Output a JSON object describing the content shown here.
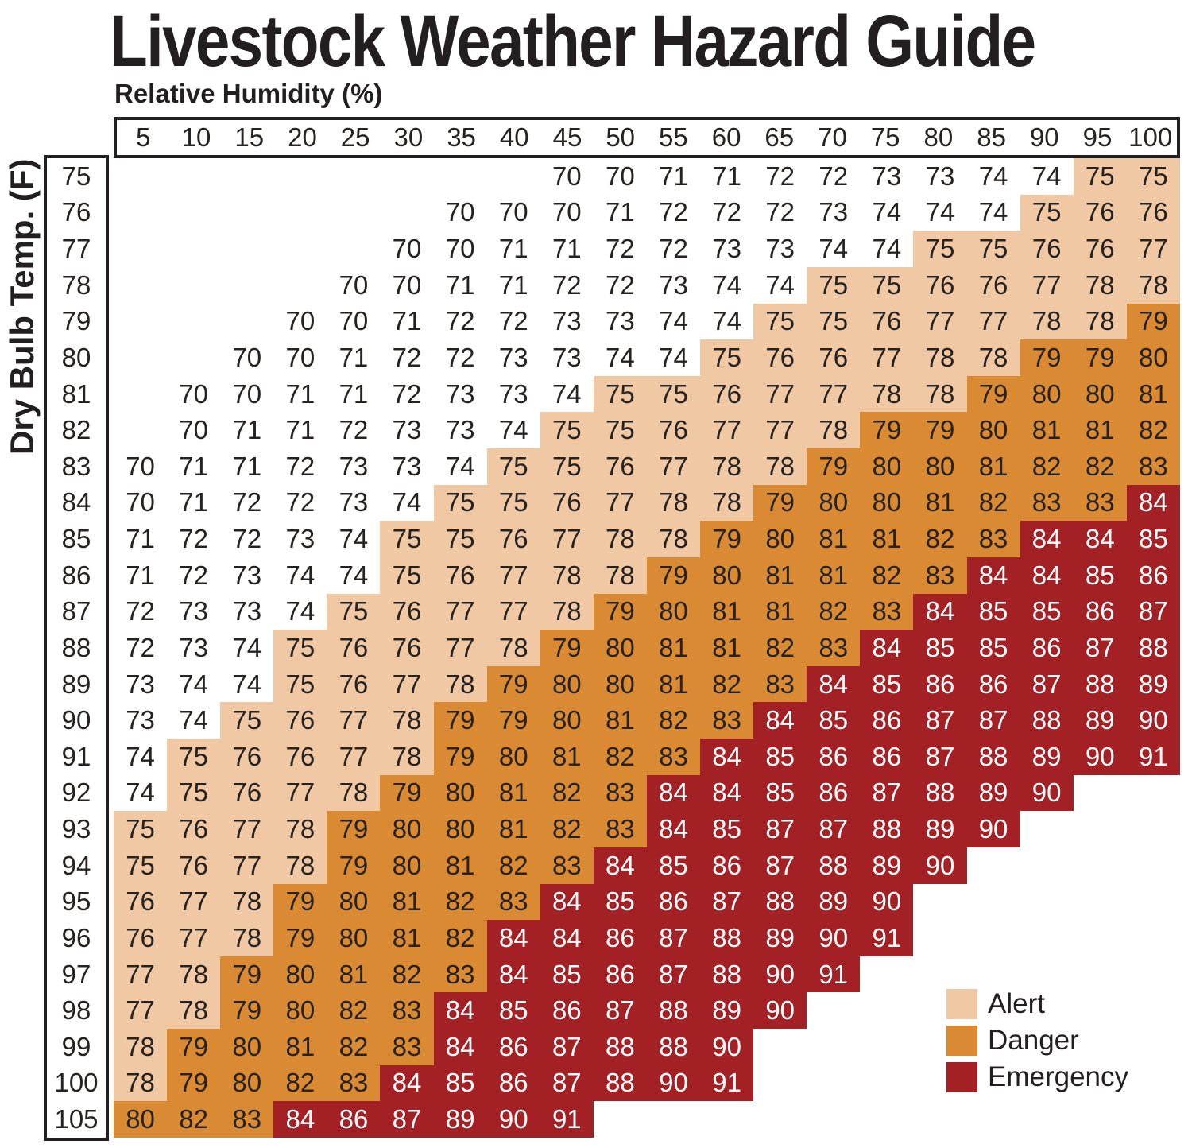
{
  "title": "Livestock Weather Hazard Guide",
  "axes": {
    "x_label": "Relative Humidity (%)",
    "y_label": "Dry Bulb Temp. (F)"
  },
  "legend": {
    "items": [
      {
        "label": "Alert",
        "key": "alert"
      },
      {
        "label": "Danger",
        "key": "danger"
      },
      {
        "label": "Emergency",
        "key": "emergency"
      }
    ]
  },
  "colors": {
    "alert": "#F0C9A4",
    "danger": "#D98A33",
    "emergency": "#A32024",
    "none": "#FFFFFF",
    "grid_text": "#262220",
    "emergency_text": "#FFFFFF",
    "border": "#231F20",
    "background": "#FFFFFF"
  },
  "chart_data": {
    "type": "heatmap",
    "title": "Livestock Weather Hazard Guide",
    "xlabel": "Relative Humidity (%)",
    "ylabel": "Dry Bulb Temp. (F)",
    "x": [
      5,
      10,
      15,
      20,
      25,
      30,
      35,
      40,
      45,
      50,
      55,
      60,
      65,
      70,
      75,
      80,
      85,
      90,
      95,
      100
    ],
    "zones": [
      "Alert",
      "Danger",
      "Emergency"
    ],
    "legend_position": "bottom-right",
    "rows": [
      {
        "temp": 75,
        "values": [
          null,
          null,
          null,
          null,
          null,
          null,
          null,
          null,
          70,
          70,
          71,
          71,
          72,
          72,
          73,
          73,
          74,
          74,
          75,
          75
        ],
        "alert_from": 95,
        "danger_from": null,
        "emergency_from": null
      },
      {
        "temp": 76,
        "values": [
          null,
          null,
          null,
          null,
          null,
          null,
          70,
          70,
          70,
          71,
          72,
          72,
          72,
          73,
          74,
          74,
          74,
          75,
          76,
          76
        ],
        "alert_from": 90,
        "danger_from": null,
        "emergency_from": null
      },
      {
        "temp": 77,
        "values": [
          null,
          null,
          null,
          null,
          null,
          70,
          70,
          71,
          71,
          72,
          72,
          73,
          73,
          74,
          74,
          75,
          75,
          76,
          76,
          77
        ],
        "alert_from": 80,
        "danger_from": null,
        "emergency_from": null
      },
      {
        "temp": 78,
        "values": [
          null,
          null,
          null,
          null,
          70,
          70,
          71,
          71,
          72,
          72,
          73,
          74,
          74,
          75,
          75,
          76,
          76,
          77,
          78,
          78
        ],
        "alert_from": 70,
        "danger_from": null,
        "emergency_from": null
      },
      {
        "temp": 79,
        "values": [
          null,
          null,
          null,
          70,
          70,
          71,
          72,
          72,
          73,
          73,
          74,
          74,
          75,
          75,
          76,
          77,
          77,
          78,
          78,
          79
        ],
        "alert_from": 65,
        "danger_from": 100,
        "emergency_from": null
      },
      {
        "temp": 80,
        "values": [
          null,
          null,
          70,
          70,
          71,
          72,
          72,
          73,
          73,
          74,
          74,
          75,
          76,
          76,
          77,
          78,
          78,
          79,
          79,
          80
        ],
        "alert_from": 60,
        "danger_from": 90,
        "emergency_from": null
      },
      {
        "temp": 81,
        "values": [
          null,
          70,
          70,
          71,
          71,
          72,
          73,
          73,
          74,
          75,
          75,
          76,
          77,
          77,
          78,
          78,
          79,
          80,
          80,
          81
        ],
        "alert_from": 50,
        "danger_from": 85,
        "emergency_from": null
      },
      {
        "temp": 82,
        "values": [
          null,
          70,
          71,
          71,
          72,
          73,
          73,
          74,
          75,
          75,
          76,
          77,
          77,
          78,
          79,
          79,
          80,
          81,
          81,
          82
        ],
        "alert_from": 45,
        "danger_from": 75,
        "emergency_from": null
      },
      {
        "temp": 83,
        "values": [
          70,
          71,
          71,
          72,
          73,
          73,
          74,
          75,
          75,
          76,
          77,
          78,
          78,
          79,
          80,
          80,
          81,
          82,
          82,
          83
        ],
        "alert_from": 40,
        "danger_from": 70,
        "emergency_from": null
      },
      {
        "temp": 84,
        "values": [
          70,
          71,
          72,
          72,
          73,
          74,
          75,
          75,
          76,
          77,
          78,
          78,
          79,
          80,
          80,
          81,
          82,
          83,
          83,
          84
        ],
        "alert_from": 35,
        "danger_from": 65,
        "emergency_from": 100
      },
      {
        "temp": 85,
        "values": [
          71,
          72,
          72,
          73,
          74,
          75,
          75,
          76,
          77,
          78,
          78,
          79,
          80,
          81,
          81,
          82,
          83,
          84,
          84,
          85
        ],
        "alert_from": 30,
        "danger_from": 60,
        "emergency_from": 90
      },
      {
        "temp": 86,
        "values": [
          71,
          72,
          73,
          74,
          74,
          75,
          76,
          77,
          78,
          78,
          79,
          80,
          81,
          81,
          82,
          83,
          84,
          84,
          85,
          86
        ],
        "alert_from": 30,
        "danger_from": 55,
        "emergency_from": 85
      },
      {
        "temp": 87,
        "values": [
          72,
          73,
          73,
          74,
          75,
          76,
          77,
          77,
          78,
          79,
          80,
          81,
          81,
          82,
          83,
          84,
          85,
          85,
          86,
          87
        ],
        "alert_from": 25,
        "danger_from": 50,
        "emergency_from": 80
      },
      {
        "temp": 88,
        "values": [
          72,
          73,
          74,
          75,
          76,
          76,
          77,
          78,
          79,
          80,
          81,
          81,
          82,
          83,
          84,
          85,
          85,
          86,
          87,
          88
        ],
        "alert_from": 20,
        "danger_from": 45,
        "emergency_from": 75
      },
      {
        "temp": 89,
        "values": [
          73,
          74,
          74,
          75,
          76,
          77,
          78,
          79,
          80,
          80,
          81,
          82,
          83,
          84,
          85,
          86,
          86,
          87,
          88,
          89
        ],
        "alert_from": 20,
        "danger_from": 40,
        "emergency_from": 70
      },
      {
        "temp": 90,
        "values": [
          73,
          74,
          75,
          76,
          77,
          78,
          79,
          79,
          80,
          81,
          82,
          83,
          84,
          85,
          86,
          87,
          87,
          88,
          89,
          90
        ],
        "alert_from": 15,
        "danger_from": 35,
        "emergency_from": 65
      },
      {
        "temp": 91,
        "values": [
          74,
          75,
          76,
          76,
          77,
          78,
          79,
          80,
          81,
          82,
          83,
          84,
          85,
          86,
          86,
          87,
          88,
          89,
          90,
          91
        ],
        "alert_from": 10,
        "danger_from": 35,
        "emergency_from": 60
      },
      {
        "temp": 92,
        "values": [
          74,
          75,
          76,
          77,
          78,
          79,
          80,
          81,
          82,
          83,
          84,
          84,
          85,
          86,
          87,
          88,
          89,
          90,
          null,
          null
        ],
        "alert_from": 10,
        "danger_from": 30,
        "emergency_from": 55
      },
      {
        "temp": 93,
        "values": [
          75,
          76,
          77,
          78,
          79,
          80,
          80,
          81,
          82,
          83,
          84,
          85,
          87,
          87,
          88,
          89,
          90,
          null,
          null,
          null
        ],
        "alert_from": 5,
        "danger_from": 25,
        "emergency_from": 55
      },
      {
        "temp": 94,
        "values": [
          75,
          76,
          77,
          78,
          79,
          80,
          81,
          82,
          83,
          84,
          85,
          86,
          87,
          88,
          89,
          90,
          null,
          null,
          null,
          null
        ],
        "alert_from": 5,
        "danger_from": 25,
        "emergency_from": 50
      },
      {
        "temp": 95,
        "values": [
          76,
          77,
          78,
          79,
          80,
          81,
          82,
          83,
          84,
          85,
          86,
          87,
          88,
          89,
          90,
          null,
          null,
          null,
          null,
          null
        ],
        "alert_from": 5,
        "danger_from": 20,
        "emergency_from": 45
      },
      {
        "temp": 96,
        "values": [
          76,
          77,
          78,
          79,
          80,
          81,
          82,
          84,
          84,
          86,
          87,
          88,
          89,
          90,
          91,
          null,
          null,
          null,
          null,
          null
        ],
        "alert_from": 5,
        "danger_from": 20,
        "emergency_from": 40
      },
      {
        "temp": 97,
        "values": [
          77,
          78,
          79,
          80,
          81,
          82,
          83,
          84,
          85,
          86,
          87,
          88,
          90,
          91,
          null,
          null,
          null,
          null,
          null,
          null
        ],
        "alert_from": 5,
        "danger_from": 15,
        "emergency_from": 40
      },
      {
        "temp": 98,
        "values": [
          77,
          78,
          79,
          80,
          82,
          83,
          84,
          85,
          86,
          87,
          88,
          89,
          90,
          null,
          null,
          null,
          null,
          null,
          null,
          null
        ],
        "alert_from": 5,
        "danger_from": 15,
        "emergency_from": 35
      },
      {
        "temp": 99,
        "values": [
          78,
          79,
          80,
          81,
          82,
          83,
          84,
          86,
          87,
          88,
          88,
          90,
          null,
          null,
          null,
          null,
          null,
          null,
          null,
          null
        ],
        "alert_from": 5,
        "danger_from": 10,
        "emergency_from": 35
      },
      {
        "temp": 100,
        "values": [
          78,
          79,
          80,
          82,
          83,
          84,
          85,
          86,
          87,
          88,
          90,
          91,
          null,
          null,
          null,
          null,
          null,
          null,
          null,
          null
        ],
        "alert_from": 5,
        "danger_from": 10,
        "emergency_from": 30
      },
      {
        "temp": 105,
        "values": [
          80,
          82,
          83,
          84,
          86,
          87,
          89,
          90,
          91,
          null,
          null,
          null,
          null,
          null,
          null,
          null,
          null,
          null,
          null,
          null
        ],
        "alert_from": null,
        "danger_from": 5,
        "emergency_from": 20
      }
    ]
  }
}
